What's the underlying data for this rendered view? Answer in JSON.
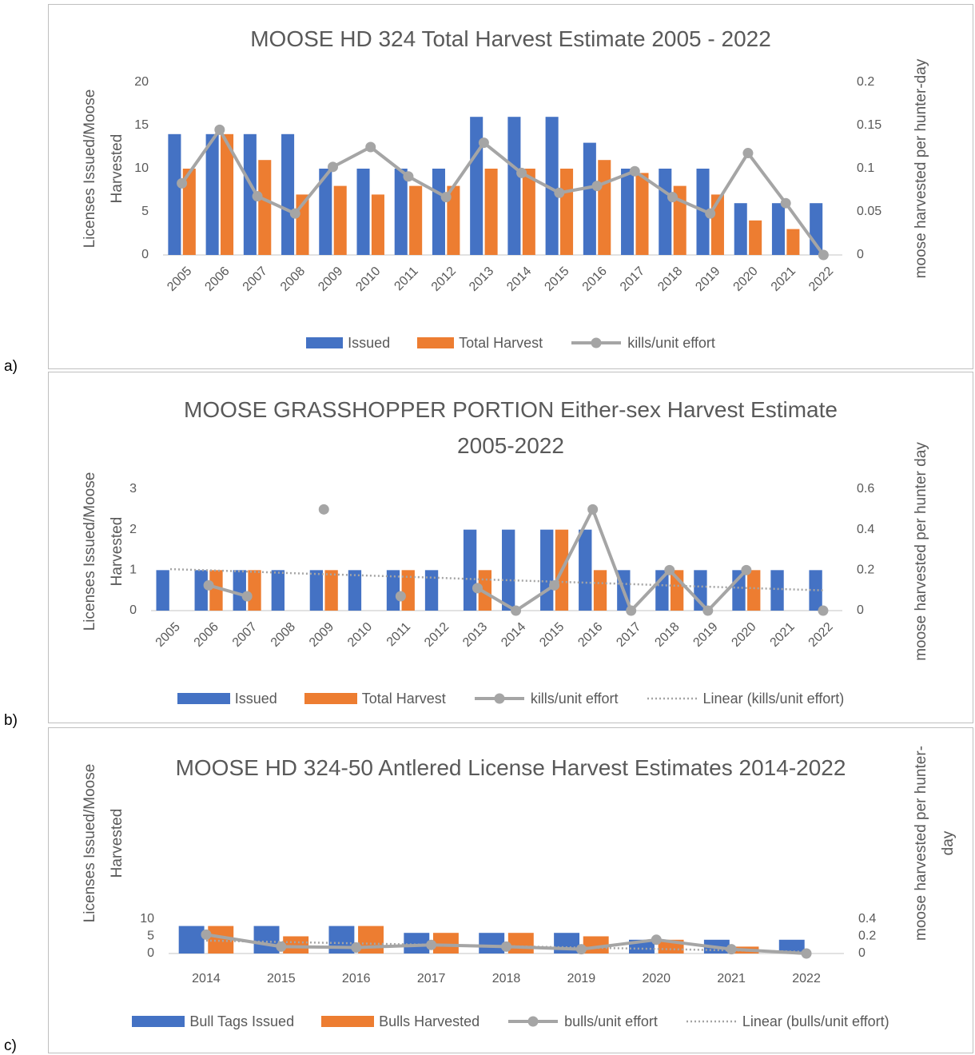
{
  "chart_data": [
    {
      "type": "combo",
      "panel_label": "a)",
      "title": "MOOSE HD 324 Total Harvest Estimate 2005 - 2022",
      "y_title": "Licenses Issued/Moose Harvested",
      "y2_title": "moose harvested per hunter-day",
      "categories": [
        "2005",
        "2006",
        "2007",
        "2008",
        "2009",
        "2010",
        "2011",
        "2012",
        "2013",
        "2014",
        "2015",
        "2016",
        "2017",
        "2018",
        "2019",
        "2020",
        "2021",
        "2022"
      ],
      "series": [
        {
          "name": "Issued",
          "type": "bar",
          "color": "#4472c4",
          "values": [
            14,
            14,
            14,
            14,
            10,
            10,
            10,
            10,
            16,
            16,
            16,
            13,
            10,
            10,
            10,
            6,
            6,
            6
          ]
        },
        {
          "name": "Total Harvest",
          "type": "bar",
          "color": "#ed7d31",
          "values": [
            10,
            14,
            11,
            7,
            8,
            7,
            8,
            8,
            10,
            10,
            10,
            11,
            9.5,
            8,
            7,
            4,
            3,
            0
          ]
        },
        {
          "name": "kills/unit effort",
          "type": "line",
          "axis": "y2",
          "marker": true,
          "color": "#a5a5a5",
          "values": [
            0.083,
            0.145,
            0.068,
            0.048,
            0.102,
            0.125,
            0.091,
            0.067,
            0.13,
            0.095,
            0.072,
            0.08,
            0.097,
            0.067,
            0.048,
            0.118,
            0.06,
            0
          ]
        }
      ],
      "ylim": [
        0,
        20
      ],
      "yticks": [
        0,
        5,
        10,
        15,
        20
      ],
      "y2lim": [
        0,
        0.2
      ],
      "y2ticks": [
        0,
        0.05,
        0.1,
        0.15,
        0.2
      ],
      "grid": false
    },
    {
      "type": "combo",
      "panel_label": "b)",
      "title": "MOOSE GRASSHOPPER PORTION Either-sex Harvest Estimate 2005-2022",
      "y_title": "Licenses Issued/Moose Harvested",
      "y2_title": "moose harvested per hunter day",
      "categories": [
        "2005",
        "2006",
        "2007",
        "2008",
        "2009",
        "2010",
        "2011",
        "2012",
        "2013",
        "2014",
        "2015",
        "2016",
        "2017",
        "2018",
        "2019",
        "2020",
        "2021",
        "2022"
      ],
      "series": [
        {
          "name": "Issued",
          "type": "bar",
          "color": "#4472c4",
          "values": [
            1,
            1,
            1,
            1,
            1,
            1,
            1,
            1,
            2,
            2,
            2,
            2,
            1,
            1,
            1,
            1,
            1,
            1
          ]
        },
        {
          "name": "Total Harvest",
          "type": "bar",
          "color": "#ed7d31",
          "values": [
            0,
            1,
            1,
            0,
            1,
            0,
            1,
            0,
            1,
            0,
            2,
            1,
            0,
            1,
            0,
            1,
            0,
            0
          ]
        },
        {
          "name": "kills/unit effort",
          "type": "line",
          "axis": "y2",
          "marker": true,
          "color": "#a5a5a5",
          "values": [
            null,
            0.125,
            0.071,
            null,
            0.5,
            null,
            0.071,
            null,
            0.111,
            0,
            0.125,
            0.5,
            0,
            0.2,
            0,
            0.2,
            null,
            0
          ]
        },
        {
          "name": "Linear (kills/unit effort)",
          "type": "line",
          "axis": "y2",
          "dash": "dotted",
          "color": "#a5a5a5",
          "values": [
            0.205,
            0.199,
            0.193,
            0.186,
            0.18,
            0.174,
            0.168,
            0.162,
            0.155,
            0.149,
            0.143,
            0.137,
            0.131,
            0.124,
            0.118,
            0.112,
            0.106,
            0.1
          ]
        }
      ],
      "ylim": [
        0,
        3
      ],
      "yticks": [
        0,
        1,
        2,
        3
      ],
      "y2lim": [
        0,
        0.6
      ],
      "y2ticks": [
        0,
        0.2,
        0.4,
        0.6
      ],
      "grid": false
    },
    {
      "type": "combo",
      "panel_label": "c)",
      "title": "MOOSE HD 324-50 Antlered License Harvest Estimates 2014-2022",
      "y_title": "Licenses Issued/Moose Harvested",
      "y2_title": "moose harvested per hunter-day",
      "categories": [
        "2014",
        "2015",
        "2016",
        "2017",
        "2018",
        "2019",
        "2020",
        "2021",
        "2022"
      ],
      "series": [
        {
          "name": "Bull Tags Issued",
          "type": "bar",
          "color": "#4472c4",
          "values": [
            8,
            8,
            8,
            6,
            6,
            6,
            4,
            4,
            4
          ]
        },
        {
          "name": "Bulls Harvested",
          "type": "bar",
          "color": "#ed7d31",
          "values": [
            8,
            5,
            8,
            6,
            6,
            5,
            4,
            2,
            0
          ]
        },
        {
          "name": "bulls/unit effort",
          "type": "line",
          "axis": "y2",
          "marker": true,
          "color": "#a5a5a5",
          "values": [
            0.22,
            0.08,
            0.07,
            0.1,
            0.08,
            0.05,
            0.16,
            0.05,
            0
          ]
        },
        {
          "name": "Linear (bulls/unit effort)",
          "type": "line",
          "axis": "y2",
          "dash": "dotted",
          "color": "#a5a5a5",
          "values": [
            0.15,
            0.134,
            0.118,
            0.101,
            0.085,
            0.069,
            0.053,
            0.036,
            0.02
          ]
        }
      ],
      "ylim": [
        0,
        10
      ],
      "yticks": [
        0,
        5,
        10
      ],
      "y2lim": [
        0,
        0.4
      ],
      "y2ticks": [
        0,
        0.2,
        0.4
      ],
      "grid": false
    }
  ]
}
